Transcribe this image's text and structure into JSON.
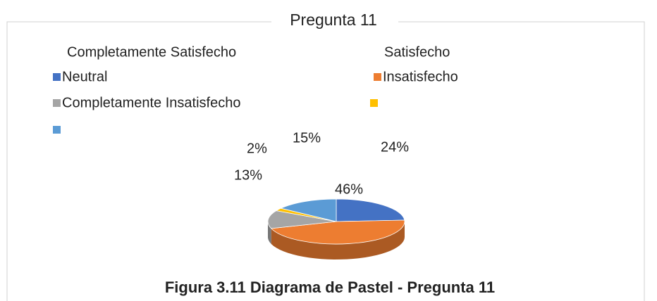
{
  "chart_data": {
    "type": "pie",
    "title": "Pregunta 11",
    "legend_headers": [
      "Completamente Satisfecho",
      "Satisfecho"
    ],
    "categories": [
      "Neutral",
      "Insatisfecho",
      "Completamente Insatisfecho",
      null,
      null
    ],
    "values": [
      24,
      46,
      13,
      2,
      15
    ],
    "value_labels": [
      "24%",
      "46%",
      "13%",
      "2%",
      "15%"
    ],
    "colors": [
      "#4472c4",
      "#ed7d31",
      "#a5a5a5",
      "#ffc000",
      "#5b9bd5"
    ],
    "caption": "Figura 3.11 Diagrama de Pastel - Pregunta 11"
  }
}
